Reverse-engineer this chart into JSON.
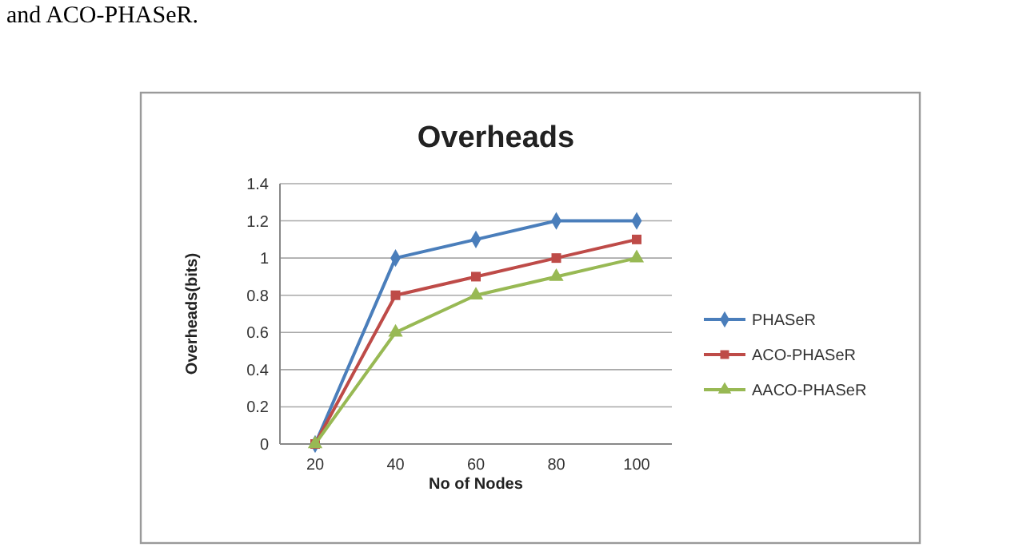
{
  "chart_data": {
    "type": "line",
    "title": "Overheads",
    "xlabel": "No of Nodes",
    "ylabel": "Overheads(bits)",
    "annotations": [
      "and ACO-PHASeR."
    ],
    "categories": [
      "20",
      "40",
      "60",
      "80",
      "100"
    ],
    "series": [
      {
        "name": "PHASeR",
        "color": "#4a7ebb",
        "marker": "diamond",
        "values": [
          0,
          1,
          1.1,
          1.2,
          1.2
        ]
      },
      {
        "name": "ACO-PHASeR",
        "color": "#be4b48",
        "marker": "square",
        "values": [
          0,
          0.8,
          0.9,
          1,
          1.1
        ]
      },
      {
        "name": "AACO-PHASeR",
        "color": "#98b954",
        "marker": "triangle",
        "values": [
          0,
          0.6,
          0.8,
          0.9,
          1
        ]
      }
    ],
    "ylim": [
      0,
      1.4
    ],
    "yticks": [
      0,
      0.2,
      0.4,
      0.6,
      0.8,
      1,
      1.2,
      1.4
    ],
    "grid": "y",
    "legend": "right"
  }
}
